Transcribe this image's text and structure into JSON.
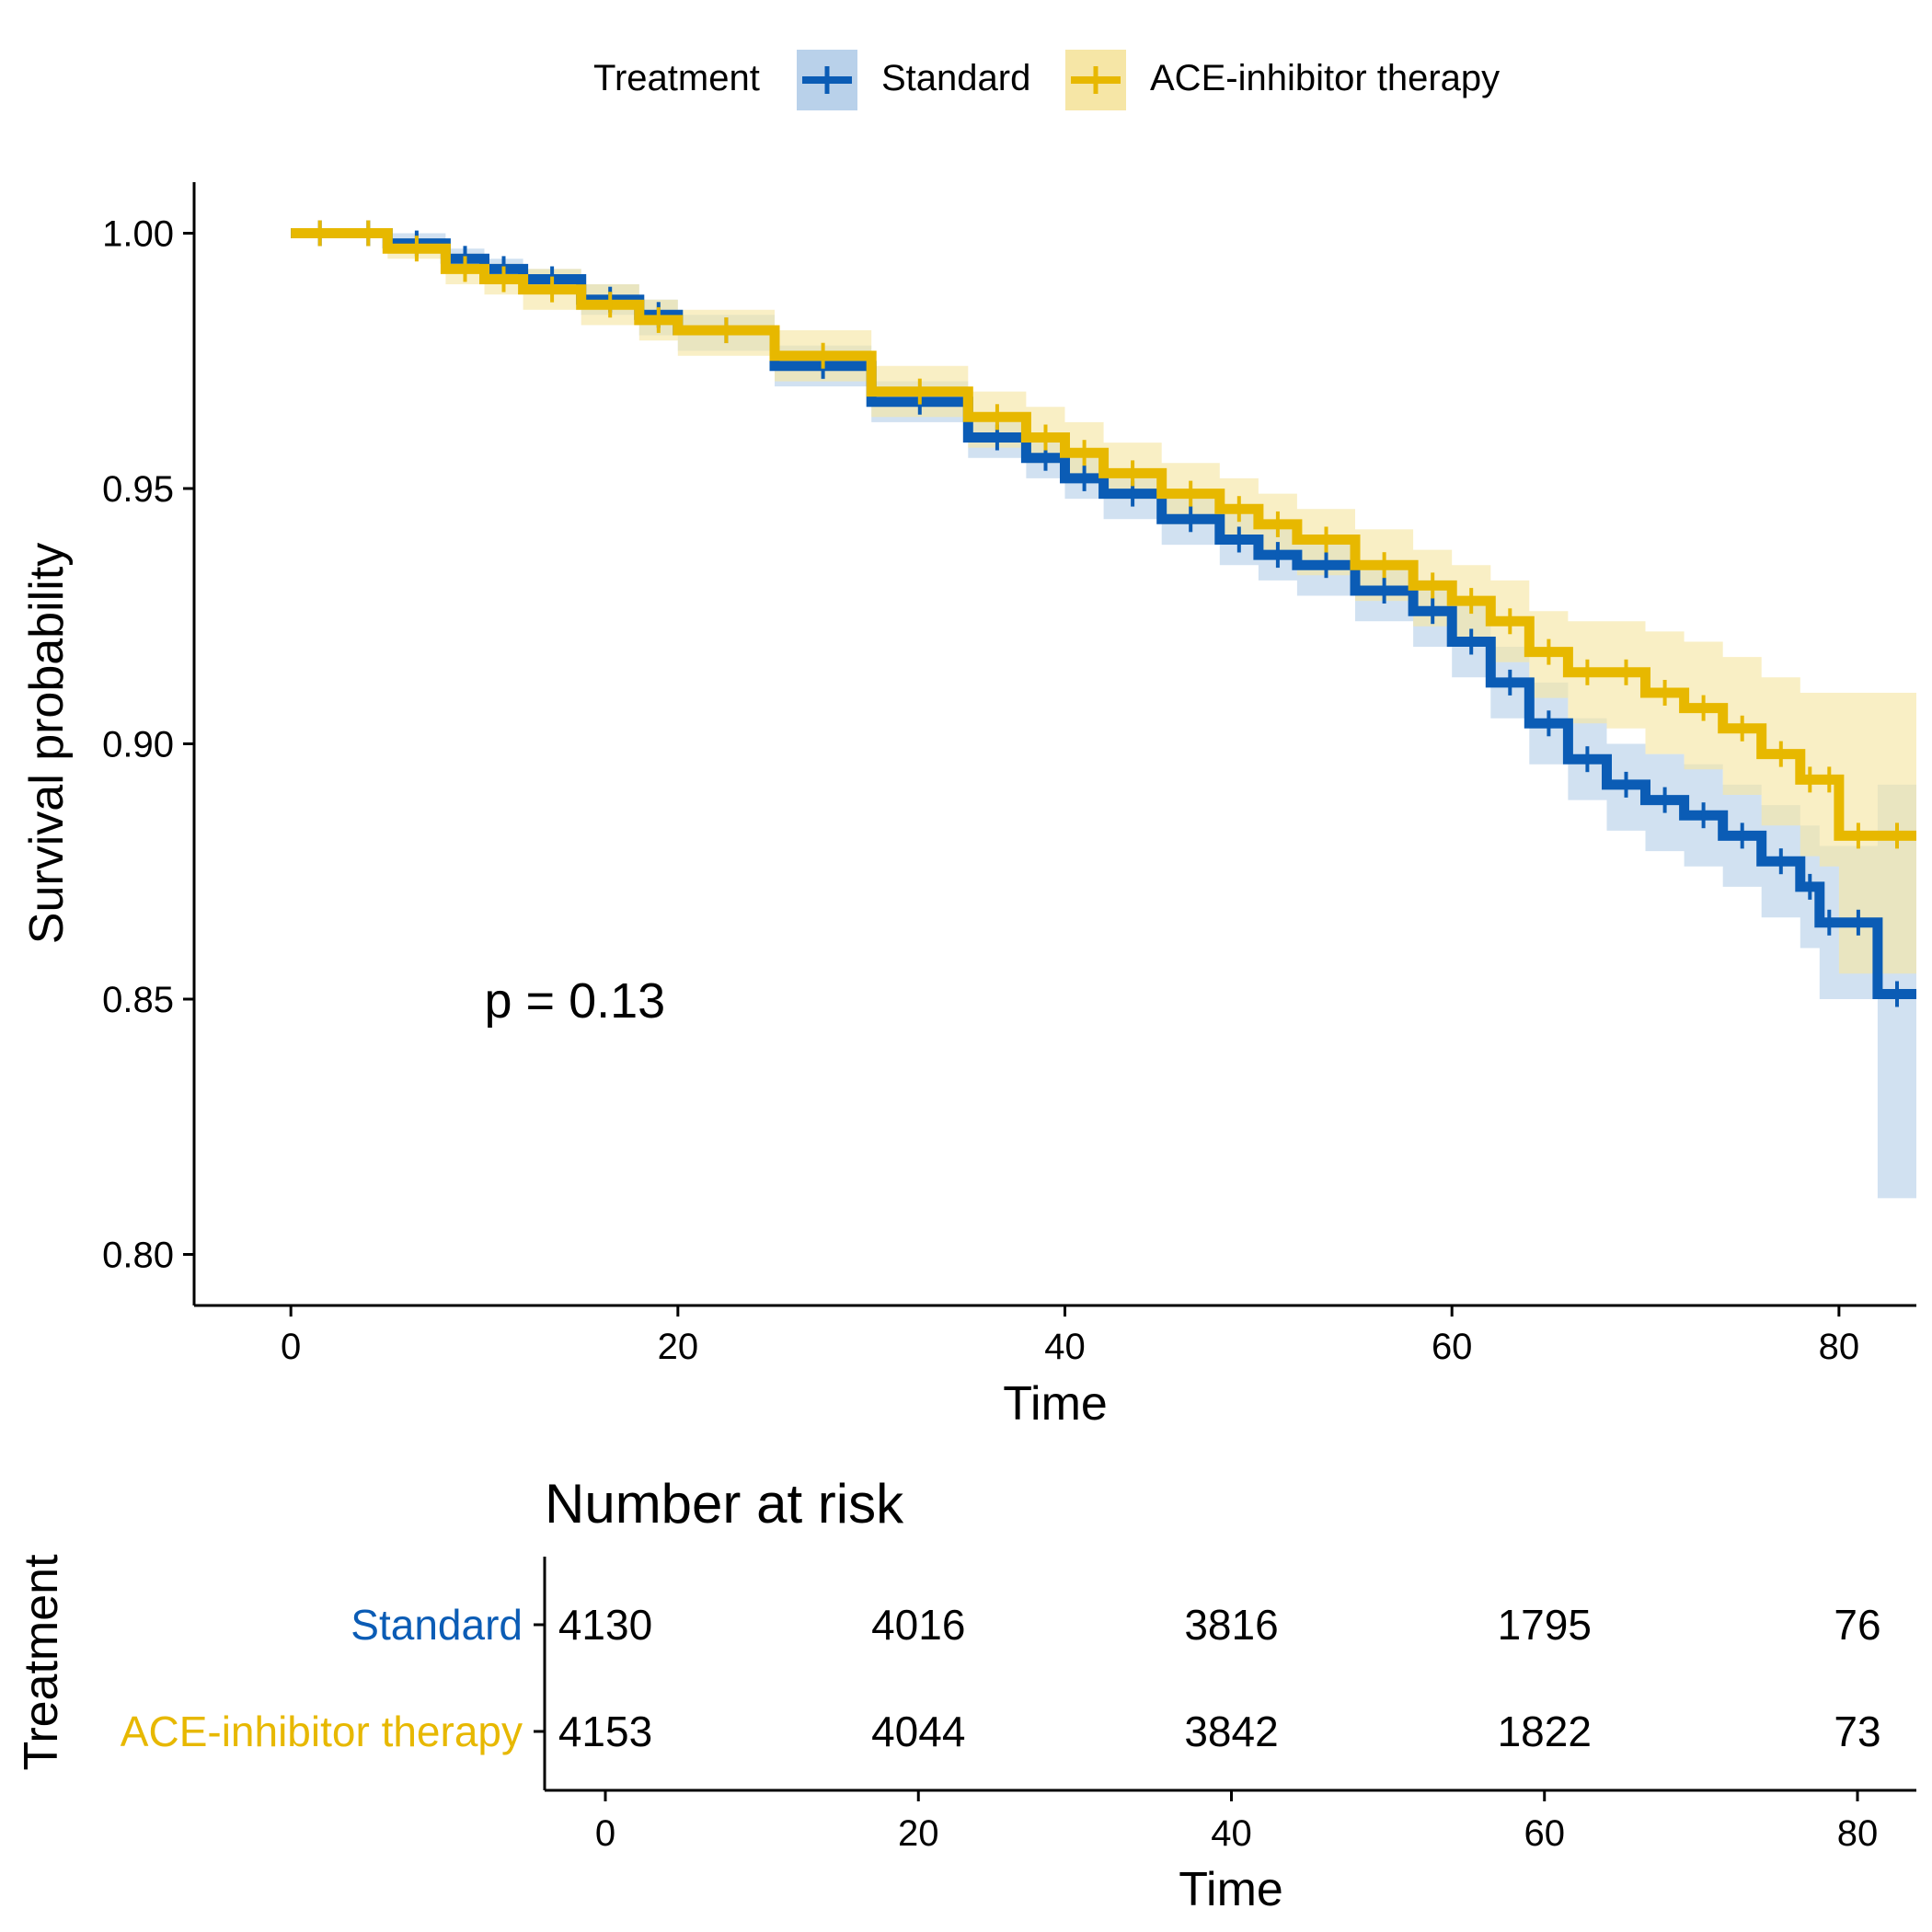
{
  "chart_data": {
    "type": "line",
    "subtype": "kaplan-meier",
    "legend": {
      "title": "Treatment",
      "position": "top"
    },
    "annotation": "p = 0.13",
    "annotation_at": {
      "x": 10,
      "y": 0.85
    },
    "main": {
      "xlabel": "Time",
      "ylabel": "Survival probability",
      "xlim": [
        -5,
        84
      ],
      "ylim": [
        0.79,
        1.01
      ],
      "xticks": [
        0,
        20,
        40,
        60,
        80
      ],
      "yticks": [
        0.8,
        0.85,
        0.9,
        0.95,
        1.0
      ],
      "ytick_labels": [
        "0.80",
        "0.85",
        "0.90",
        "0.95",
        "1.00"
      ],
      "grid": false
    },
    "series": [
      {
        "name": "Standard",
        "color": "#0B5CB5",
        "band_color": "#B9D1EA",
        "x": [
          0,
          3,
          5,
          8,
          10,
          12,
          15,
          18,
          20,
          25,
          30,
          35,
          38,
          40,
          42,
          45,
          48,
          50,
          52,
          55,
          58,
          60,
          62,
          64,
          66,
          68,
          70,
          72,
          74,
          76,
          78,
          79,
          80,
          82,
          84
        ],
        "y": [
          1.0,
          1.0,
          0.998,
          0.995,
          0.993,
          0.991,
          0.987,
          0.984,
          0.981,
          0.974,
          0.967,
          0.96,
          0.956,
          0.952,
          0.949,
          0.944,
          0.94,
          0.937,
          0.935,
          0.93,
          0.926,
          0.92,
          0.912,
          0.904,
          0.897,
          0.892,
          0.889,
          0.886,
          0.882,
          0.877,
          0.872,
          0.865,
          0.865,
          0.851,
          0.851
        ],
        "ci_lower": [
          1.0,
          0.999,
          0.996,
          0.993,
          0.991,
          0.988,
          0.984,
          0.98,
          0.977,
          0.97,
          0.963,
          0.956,
          0.952,
          0.948,
          0.944,
          0.939,
          0.935,
          0.932,
          0.929,
          0.924,
          0.919,
          0.913,
          0.905,
          0.896,
          0.889,
          0.883,
          0.879,
          0.876,
          0.872,
          0.866,
          0.86,
          0.85,
          0.85,
          0.811,
          0.811
        ],
        "ci_upper": [
          1.0,
          1.0,
          1.0,
          0.997,
          0.995,
          0.993,
          0.99,
          0.987,
          0.984,
          0.978,
          0.971,
          0.964,
          0.96,
          0.956,
          0.953,
          0.948,
          0.945,
          0.942,
          0.94,
          0.935,
          0.932,
          0.927,
          0.919,
          0.912,
          0.905,
          0.9,
          0.898,
          0.896,
          0.892,
          0.888,
          0.884,
          0.88,
          0.88,
          0.892,
          0.892
        ]
      },
      {
        "name": "ACE-inhibitor therapy",
        "color": "#E7B800",
        "band_color": "#F6E6A6",
        "x": [
          0,
          3,
          5,
          8,
          10,
          12,
          15,
          18,
          20,
          25,
          30,
          35,
          38,
          40,
          42,
          45,
          48,
          50,
          52,
          55,
          58,
          60,
          62,
          64,
          66,
          68,
          70,
          72,
          74,
          76,
          78,
          79,
          80,
          82,
          84
        ],
        "y": [
          1.0,
          1.0,
          0.997,
          0.993,
          0.991,
          0.989,
          0.986,
          0.983,
          0.981,
          0.976,
          0.969,
          0.964,
          0.96,
          0.957,
          0.953,
          0.949,
          0.946,
          0.943,
          0.94,
          0.935,
          0.931,
          0.928,
          0.924,
          0.918,
          0.914,
          0.914,
          0.91,
          0.907,
          0.903,
          0.898,
          0.893,
          0.893,
          0.882,
          0.882,
          0.882
        ],
        "ci_lower": [
          1.0,
          0.999,
          0.995,
          0.99,
          0.988,
          0.985,
          0.982,
          0.979,
          0.976,
          0.971,
          0.964,
          0.958,
          0.955,
          0.952,
          0.948,
          0.943,
          0.94,
          0.937,
          0.933,
          0.928,
          0.923,
          0.92,
          0.916,
          0.909,
          0.904,
          0.903,
          0.898,
          0.895,
          0.89,
          0.884,
          0.878,
          0.876,
          0.855,
          0.855,
          0.855
        ],
        "ci_upper": [
          1.0,
          1.0,
          0.999,
          0.996,
          0.994,
          0.993,
          0.99,
          0.987,
          0.985,
          0.981,
          0.974,
          0.969,
          0.966,
          0.963,
          0.959,
          0.955,
          0.952,
          0.949,
          0.946,
          0.942,
          0.938,
          0.935,
          0.932,
          0.926,
          0.924,
          0.924,
          0.922,
          0.92,
          0.917,
          0.913,
          0.91,
          0.91,
          0.91,
          0.91,
          0.91
        ]
      }
    ],
    "risk_table": {
      "title": "Number at risk",
      "ylabel": "Treatment",
      "xlabel": "Time",
      "times": [
        0,
        20,
        40,
        60,
        80
      ],
      "rows": [
        {
          "name": "Standard",
          "color": "#0B5CB5",
          "values": [
            4130,
            4016,
            3816,
            1795,
            76
          ]
        },
        {
          "name": "ACE-inhibitor therapy",
          "color": "#E7B800",
          "values": [
            4153,
            4044,
            3842,
            1822,
            73
          ]
        }
      ]
    }
  }
}
